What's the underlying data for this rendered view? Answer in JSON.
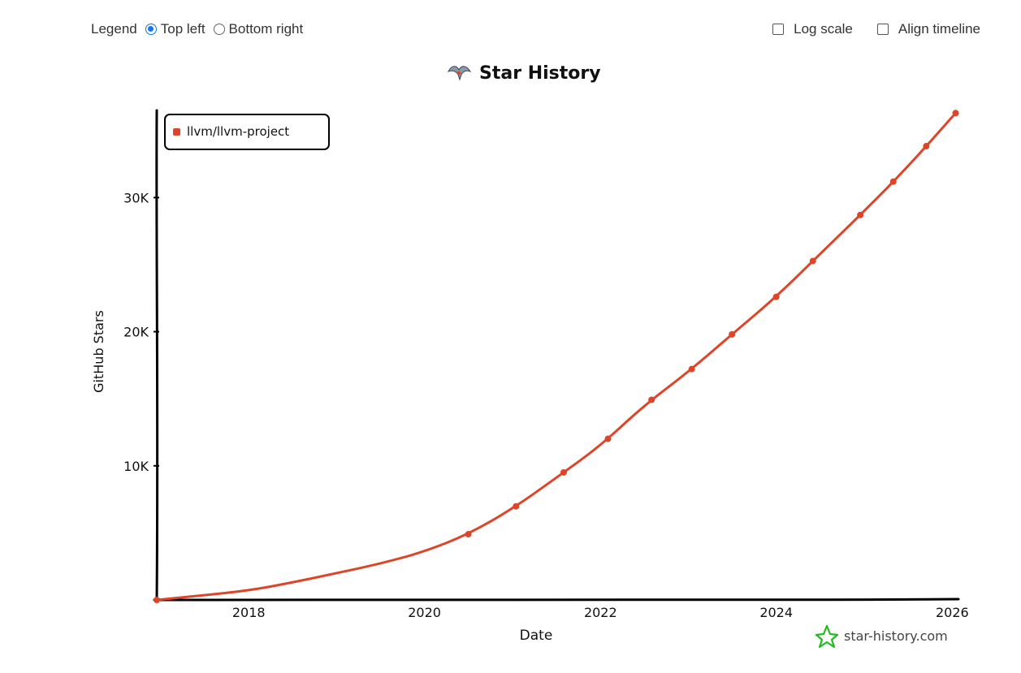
{
  "controls": {
    "legend_label": "Legend",
    "legend_options": [
      {
        "label": "Top left",
        "selected": true
      },
      {
        "label": "Bottom right",
        "selected": false
      }
    ],
    "log_scale_label": "Log scale",
    "log_scale_checked": false,
    "align_timeline_label": "Align timeline",
    "align_timeline_checked": false
  },
  "watermark": "star-history.com",
  "colors": {
    "series": "#dd4528",
    "axis": "#000000",
    "watermark_icon": "#22bb22",
    "radio_accent": "#1a73e8"
  },
  "chart_data": {
    "type": "line",
    "title": "Star History",
    "title_icon": "star-history-logo-icon",
    "xlabel": "Date",
    "ylabel": "GitHub Stars",
    "x_type": "date",
    "xlim": [
      "2016-12-15",
      "2026-01-20"
    ],
    "ylim": [
      0,
      36500
    ],
    "x_ticks": [
      "2018",
      "2020",
      "2022",
      "2024",
      "2026"
    ],
    "y_ticks": [
      "10K",
      "20K",
      "30K"
    ],
    "y_tick_values": [
      10000,
      20000,
      30000
    ],
    "grid": false,
    "legend_position": "top-left",
    "series": [
      {
        "name": "llvm/llvm-project",
        "color": "#dd4528",
        "x": [
          "2016-12-15",
          "2017-06-01",
          "2018-01-01",
          "2018-07-01",
          "2019-01-01",
          "2019-07-01",
          "2020-01-01",
          "2020-07-01",
          "2021-01-01",
          "2021-07-01",
          "2022-01-01",
          "2022-07-01",
          "2023-01-01",
          "2023-07-01",
          "2024-01-01",
          "2024-07-01",
          "2025-01-01",
          "2025-07-01",
          "2026-01-15"
        ],
        "values": [
          0,
          300,
          700,
          1300,
          2000,
          2700,
          3600,
          4900,
          6800,
          9100,
          11500,
          14500,
          17000,
          19800,
          22600,
          25800,
          29000,
          32300,
          36300
        ],
        "markers": [
          "2016-12-15",
          "2020-07-01",
          "2021-01-15",
          "2021-08-01",
          "2022-02-01",
          "2022-08-01",
          "2023-01-15",
          "2023-07-01",
          "2024-01-01",
          "2024-06-01",
          "2024-12-15",
          "2025-05-01",
          "2025-09-15",
          "2026-01-15"
        ]
      }
    ]
  }
}
